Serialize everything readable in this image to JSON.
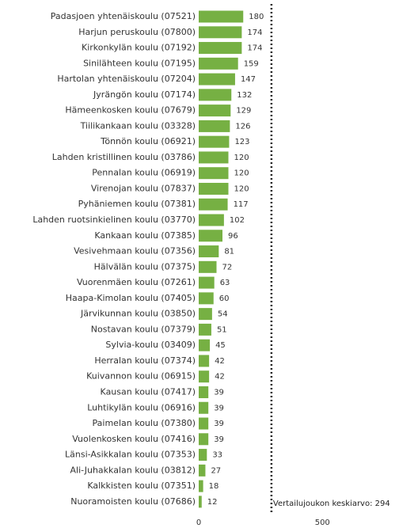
{
  "chart_data": {
    "type": "bar",
    "orientation": "horizontal",
    "categories": [
      "Padasjoen yhtenäiskoulu (07521)",
      "Harjun peruskoulu (07800)",
      "Kirkonkylän koulu (07192)",
      "Sinilähteen koulu (07195)",
      "Hartolan yhtenäiskoulu (07204)",
      "Jyrängön koulu (07174)",
      "Hämeenkosken koulu (07679)",
      "Tiilikankaan koulu (03328)",
      "Tönnön koulu (06921)",
      "Lahden kristillinen koulu (03786)",
      "Pennalan koulu (06919)",
      "Virenojan koulu (07837)",
      "Pyhäniemen koulu (07381)",
      "Lahden ruotsinkielinen koulu (03770)",
      "Kankaan koulu (07385)",
      "Vesivehmaan koulu (07356)",
      "Hälvälän koulu (07375)",
      "Vuorenmäen koulu (07261)",
      "Haapa-Kimolan koulu (07405)",
      "Järvikunnan koulu (03850)",
      "Nostavan koulu (07379)",
      "Sylvia-koulu (03409)",
      "Herralan koulu (07374)",
      "Kuivannon koulu (06915)",
      "Kausan koulu (07417)",
      "Luhtikylän koulu (06916)",
      "Paimelan koulu (07380)",
      "Vuolenkosken koulu (07416)",
      "Länsi-Asikkalan koulu (07353)",
      "Ali-Juhakkalan koulu (03812)",
      "Kalkkisten koulu (07351)",
      "Nuoramoisten koulu (07686)"
    ],
    "values": [
      180,
      174,
      174,
      159,
      147,
      132,
      129,
      126,
      123,
      120,
      120,
      120,
      117,
      102,
      96,
      81,
      72,
      63,
      60,
      54,
      51,
      45,
      42,
      42,
      39,
      39,
      39,
      39,
      33,
      27,
      18,
      12
    ],
    "color": "#76b043",
    "xlim": [
      0,
      800
    ],
    "xticks": [
      0,
      500
    ],
    "grid": false,
    "reference_line": {
      "value": 294,
      "label": "Vertailujoukon keskiarvo: 294"
    }
  }
}
